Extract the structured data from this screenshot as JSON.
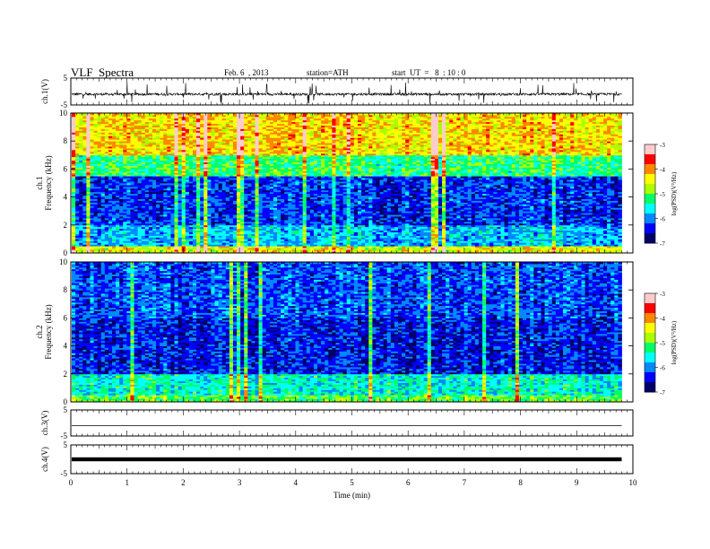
{
  "header": {
    "title": "VLF  Spectra",
    "date": "Feb. 6  , 2013",
    "station": "station=ATH",
    "start": "start  UT  =   8  : 10 : 0"
  },
  "colors": {
    "background": "#ffffff",
    "trace": "#000000",
    "colormap": [
      "#000066",
      "#0000ff",
      "#0088ff",
      "#00ffff",
      "#00ff66",
      "#aaff00",
      "#ffff00",
      "#ff8800",
      "#ff0000",
      "#ffcccc"
    ]
  },
  "chart_data": [
    {
      "type": "line",
      "panel": "ch1-waveform",
      "ylabel": "ch.1(V)",
      "ylim": [
        -5,
        5
      ],
      "y_ticks": [
        "5",
        "-5"
      ],
      "series": [
        {
          "approx_level": -1.0,
          "spike_range": [
            -4.8,
            3.5
          ]
        }
      ]
    },
    {
      "type": "heatmap",
      "panel": "ch1-spectrogram",
      "ylabel_lines": [
        "ch.1",
        "Frequency  (kHz)"
      ],
      "ylim": [
        0,
        10
      ],
      "y_ticks": [
        "10",
        "8",
        "6",
        "4",
        "2",
        "0"
      ],
      "colorbar": {
        "label": "log(PSD)(V²/Hz)",
        "range": [
          -7,
          -3
        ],
        "ticks": [
          "-3",
          "-4",
          "-5",
          "-6",
          "-7"
        ]
      },
      "bands": [
        {
          "from": 0,
          "to": 0.5,
          "level": -4.5
        },
        {
          "from": 0.5,
          "to": 2.0,
          "level": -5.8
        },
        {
          "from": 2.0,
          "to": 5.5,
          "level": -6.3
        },
        {
          "from": 5.5,
          "to": 7.0,
          "level": -5.2
        },
        {
          "from": 7.0,
          "to": 10,
          "level": -4.3
        }
      ]
    },
    {
      "type": "heatmap",
      "panel": "ch2-spectrogram",
      "ylabel_lines": [
        "ch.2",
        "Frequency  (kHz)"
      ],
      "ylim": [
        0,
        10
      ],
      "y_ticks": [
        "10",
        "8",
        "6",
        "4",
        "2",
        "0"
      ],
      "colorbar": {
        "label": "log(PSD)(V²/Hz)",
        "range": [
          -7,
          -3
        ],
        "ticks": [
          "-3",
          "-4",
          "-5",
          "-6",
          "-7"
        ]
      },
      "bands": [
        {
          "from": 0,
          "to": 0.5,
          "level": -5.0
        },
        {
          "from": 0.5,
          "to": 2.0,
          "level": -5.5
        },
        {
          "from": 2.0,
          "to": 6.0,
          "level": -6.4
        },
        {
          "from": 6.0,
          "to": 10,
          "level": -6.2
        }
      ]
    },
    {
      "type": "line",
      "panel": "ch3-waveform",
      "ylabel": "ch.3(V)",
      "ylim": [
        -5,
        5
      ],
      "y_ticks": [
        "5",
        "-5"
      ],
      "series": [
        {
          "approx_level": -1.0
        }
      ]
    },
    {
      "type": "line",
      "panel": "ch4-waveform",
      "ylabel": "ch.4(V)",
      "ylim": [
        -5,
        5
      ],
      "y_ticks": [
        "5",
        "-5"
      ],
      "series": [
        {
          "approx_level": 0.0
        }
      ]
    }
  ],
  "x_axis": {
    "label": "Time  (min)",
    "xlim": [
      0,
      10
    ],
    "data_end": 9.8,
    "ticks": [
      "0",
      "1",
      "2",
      "3",
      "4",
      "5",
      "6",
      "7",
      "8",
      "9",
      "10"
    ]
  }
}
